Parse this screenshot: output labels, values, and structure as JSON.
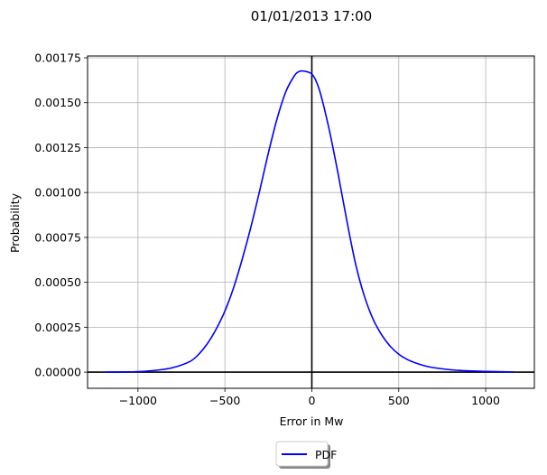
{
  "chart_data": {
    "type": "line",
    "title": "01/01/2013 17:00",
    "xlabel": "Error in Mw",
    "ylabel": "Probability",
    "xlim": [
      -1290,
      1280
    ],
    "ylim": [
      -9e-05,
      0.00176
    ],
    "x_ticks": [
      -1000,
      -500,
      0,
      500,
      1000
    ],
    "x_tick_labels": [
      "−1000",
      "−500",
      "0",
      "500",
      "1000"
    ],
    "y_ticks": [
      0,
      0.00025,
      0.0005,
      0.00075,
      0.001,
      0.00125,
      0.0015,
      0.00175
    ],
    "y_tick_labels": [
      "0.00000",
      "0.00025",
      "0.00050",
      "0.00075",
      "0.00100",
      "0.00125",
      "0.00150",
      "0.00175"
    ],
    "grid": true,
    "reference_lines": {
      "x": 0,
      "y": 0,
      "color": "#000000"
    },
    "legend": {
      "placement": "bottom-center-outside",
      "shadow": true
    },
    "series": [
      {
        "name": "PDF",
        "color": "#0000ff",
        "x": [
          -1190,
          -1100,
          -1000,
          -900,
          -800,
          -700,
          -650,
          -600,
          -550,
          -500,
          -450,
          -400,
          -350,
          -300,
          -250,
          -200,
          -150,
          -100,
          -70,
          -40,
          -20,
          0,
          20,
          50,
          100,
          150,
          200,
          250,
          300,
          350,
          400,
          450,
          500,
          550,
          600,
          650,
          700,
          800,
          900,
          1000,
          1100,
          1160
        ],
        "y": [
          0.0,
          1e-06,
          3e-06,
          1e-05,
          2.5e-05,
          6e-05,
          0.0001,
          0.00016,
          0.00024,
          0.00034,
          0.00047,
          0.00063,
          0.00081,
          0.00101,
          0.00122,
          0.00141,
          0.00156,
          0.00165,
          0.001675,
          0.001675,
          0.00167,
          0.00166,
          0.00163,
          0.00155,
          0.00135,
          0.00111,
          0.00085,
          0.00061,
          0.00043,
          0.0003,
          0.00021,
          0.000145,
          0.0001,
          7e-05,
          5e-05,
          3.5e-05,
          2.5e-05,
          1.3e-05,
          7e-06,
          4e-06,
          2e-06,
          1e-06
        ]
      }
    ]
  }
}
